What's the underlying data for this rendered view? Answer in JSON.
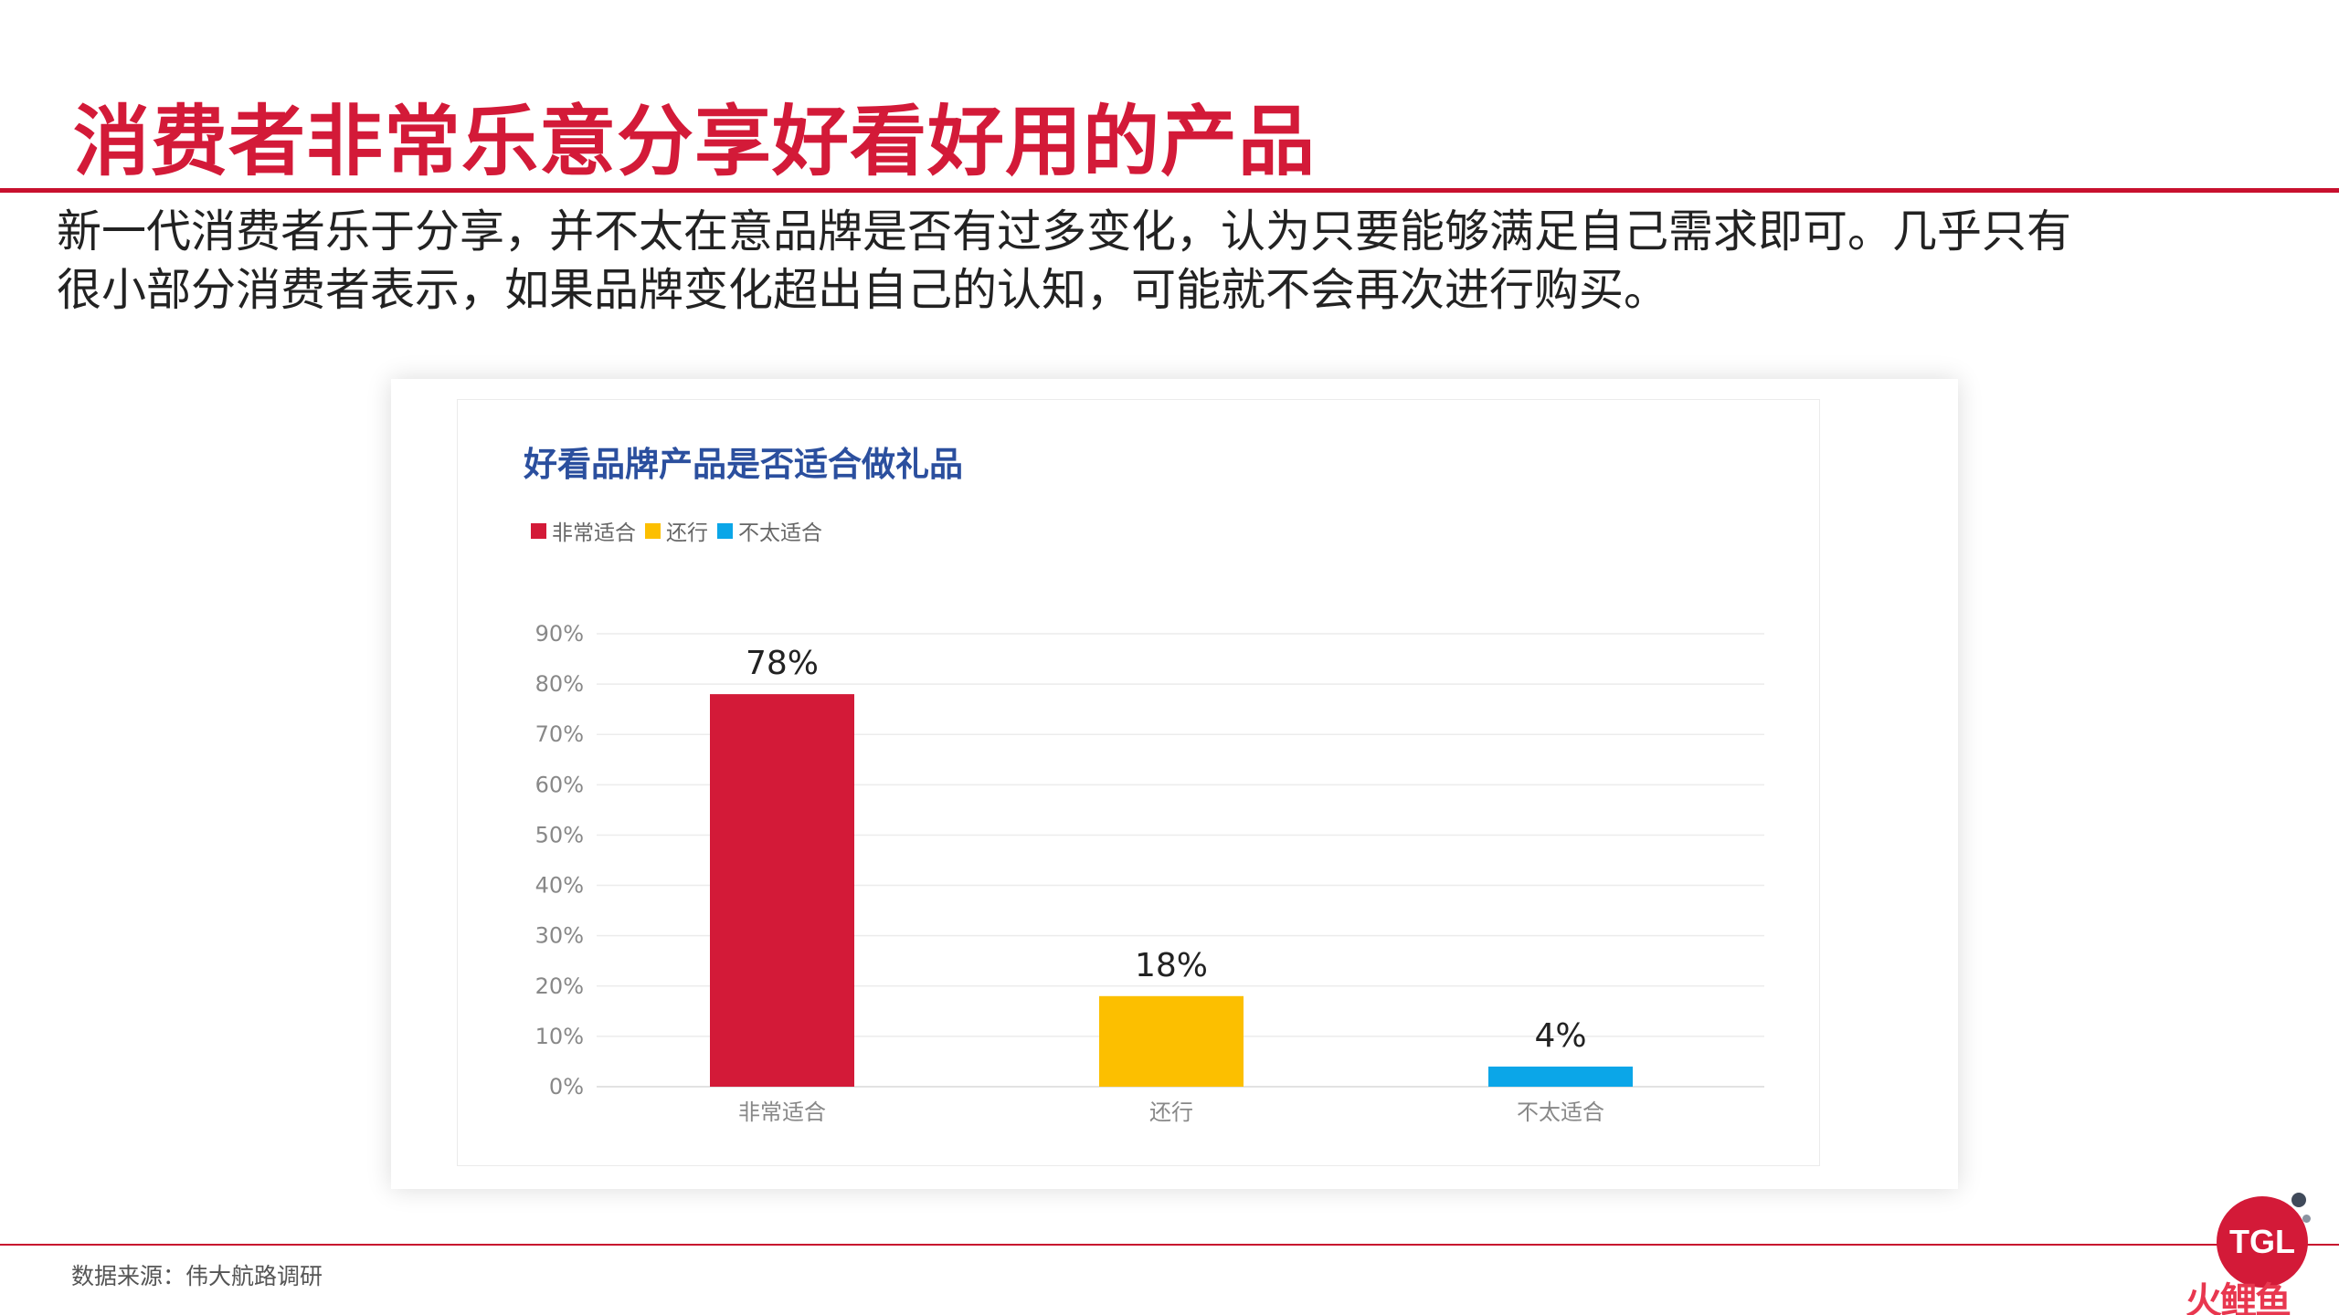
{
  "slide": {
    "title": "消费者非常乐意分享好看好用的产品",
    "intro_line1": "新一代消费者乐于分享，并不太在意品牌是否有过多变化，认为只要能够满足自己需求即可。几乎只有",
    "intro_line2": "很小部分消费者表示，如果品牌变化超出自己的认知，可能就不会再次进行购买。",
    "source": "数据来源：伟大航路调研"
  },
  "logo": {
    "text": "TGL",
    "watermark": "火鲤鱼"
  },
  "chart_data": {
    "type": "bar",
    "title": "好看品牌产品是否适合做礼品",
    "categories": [
      "非常适合",
      "还行",
      "不太适合"
    ],
    "series": [
      {
        "name": "非常适合",
        "value": 78,
        "label": "78%",
        "color": "#d31a38"
      },
      {
        "name": "还行",
        "value": 18,
        "label": "18%",
        "color": "#fcbf00"
      },
      {
        "name": "不太适合",
        "value": 4,
        "label": "4%",
        "color": "#0ba6e8"
      }
    ],
    "ylim": [
      0,
      90
    ],
    "yticks": [
      {
        "value": 0,
        "label": "0%"
      },
      {
        "value": 10,
        "label": "10%"
      },
      {
        "value": 20,
        "label": "20%"
      },
      {
        "value": 30,
        "label": "30%"
      },
      {
        "value": 40,
        "label": "40%"
      },
      {
        "value": 50,
        "label": "50%"
      },
      {
        "value": 60,
        "label": "60%"
      },
      {
        "value": 70,
        "label": "70%"
      },
      {
        "value": 80,
        "label": "80%"
      },
      {
        "value": 90,
        "label": "90%"
      }
    ],
    "xlabel": "",
    "ylabel": "",
    "grid": true,
    "legend": "top-left"
  }
}
